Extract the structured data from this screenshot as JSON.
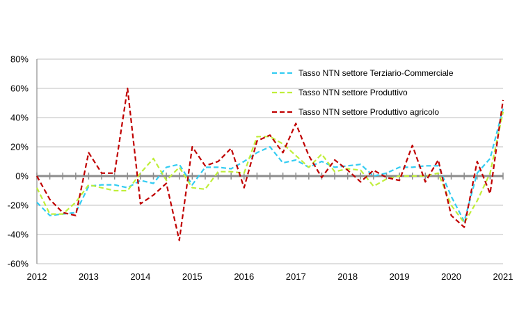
{
  "chart_data": {
    "type": "line",
    "title": "",
    "xlabel": "",
    "ylabel": "",
    "ylim": [
      -60,
      80
    ],
    "y_ticks": [
      -60,
      -40,
      -20,
      0,
      20,
      40,
      60,
      80
    ],
    "y_tick_labels": [
      "-60%",
      "-40%",
      "-20%",
      "0%",
      "20%",
      "40%",
      "60%",
      "80%"
    ],
    "xlim": [
      2012,
      2021
    ],
    "x_ticks": [
      2012,
      2013,
      2014,
      2015,
      2016,
      2017,
      2018,
      2019,
      2020,
      2021
    ],
    "x_tick_labels": [
      "2012",
      "2013",
      "2014",
      "2015",
      "2016",
      "2017",
      "2018",
      "2019",
      "2020",
      "2021"
    ],
    "grid": "horizontal",
    "legend_position": "top-right",
    "x": [
      2012.0,
      2012.25,
      2012.5,
      2012.75,
      2013.0,
      2013.25,
      2013.5,
      2013.75,
      2014.0,
      2014.25,
      2014.5,
      2014.75,
      2015.0,
      2015.25,
      2015.5,
      2015.75,
      2016.0,
      2016.25,
      2016.5,
      2016.75,
      2017.0,
      2017.25,
      2017.5,
      2017.75,
      2018.0,
      2018.25,
      2018.5,
      2018.75,
      2019.0,
      2019.25,
      2019.5,
      2019.75,
      2020.0,
      2020.25,
      2020.5,
      2020.75,
      2021.0
    ],
    "series": [
      {
        "name": "Tasso NTN settore Terziario-Commerciale",
        "color": "#33ccf2",
        "values": [
          -18,
          -27,
          -26,
          -25,
          -7,
          -6,
          -6,
          -8,
          -3,
          -5,
          6,
          8,
          -6,
          6,
          6,
          5,
          10,
          16,
          20,
          9,
          11,
          6,
          10,
          6,
          7,
          8,
          0,
          2,
          6,
          6,
          7,
          7,
          -14,
          -31,
          2,
          12,
          46
        ]
      },
      {
        "name": "Tasso NTN settore Produttivo",
        "color": "#c0ee3a",
        "values": [
          -8,
          -26,
          -26,
          -18,
          -6,
          -8,
          -10,
          -10,
          2,
          12,
          -3,
          6,
          -8,
          -9,
          3,
          3,
          2,
          27,
          27,
          22,
          14,
          6,
          15,
          3,
          5,
          4,
          -7,
          -2,
          0,
          0,
          0,
          2,
          -20,
          -32,
          -17,
          2,
          44
        ]
      },
      {
        "name": "Tasso NTN settore Produttivo agricolo",
        "color": "#c00000",
        "values": [
          0,
          -16,
          -25,
          -27,
          16,
          2,
          2,
          60,
          -19,
          -13,
          -5,
          -44,
          20,
          7,
          10,
          19,
          -8,
          24,
          28,
          16,
          36,
          14,
          -1,
          11,
          4,
          -4,
          4,
          -1,
          -3,
          21,
          -4,
          11,
          -27,
          -35,
          10,
          -12,
          52
        ]
      }
    ]
  }
}
